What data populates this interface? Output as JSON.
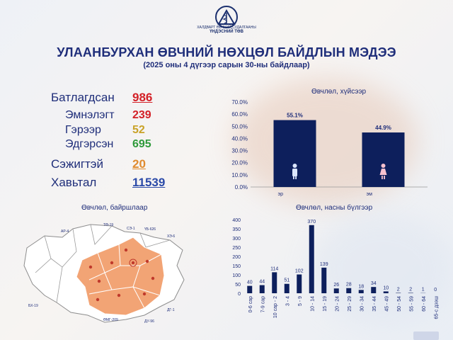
{
  "header": {
    "logo_lines": [
      "ХАЛДВАРТ ӨВЧНИЙ СУДАЛГААНЫ",
      "ҮНДЭСНИЙ ТӨВ"
    ],
    "title": "УЛААНБУРХАН ӨВЧНИЙ НӨХЦӨЛ БАЙДЛЫН МЭДЭЭ",
    "subtitle": "(2025 оны 4 дүгээр сарын 30-ны байдлаар)"
  },
  "stats": {
    "confirmed": {
      "label": "Батлагдсан",
      "value": "986",
      "color": "#d32027"
    },
    "hospital": {
      "label": "Эмнэлэгт",
      "value": "239",
      "color": "#d32027"
    },
    "home": {
      "label": "Гэрээр",
      "value": "52",
      "color": "#c9a227"
    },
    "recovered": {
      "label": "Эдгэрсэн",
      "value": "695",
      "color": "#2e9a3a"
    },
    "suspected": {
      "label": "Сэжигтэй",
      "value": "20",
      "color": "#e08b2e"
    },
    "contacts": {
      "label": "Хавьтал",
      "value": "11539",
      "color": "#2b4aa8"
    }
  },
  "map": {
    "title": "Өвчлөл, байршлаар",
    "highlight_color": "#f2a475",
    "labels": [
      "АР-4",
      "ТӨ-19",
      "СЭ-1",
      "ҮБ-626",
      "ХЭ-6",
      "БХ-19",
      "ӨМГ-209",
      "ДГ-1",
      "ДУ-96"
    ]
  },
  "chart_data": [
    {
      "type": "bar",
      "title": "Өвчлөл, хүйсээр",
      "categories": [
        "эр",
        "эм"
      ],
      "values": [
        55.1,
        44.9
      ],
      "data_labels": [
        "55.1%",
        "44.9%"
      ],
      "ylim": [
        0,
        70
      ],
      "yticks": [
        "0.0%",
        "10.0%",
        "20.0%",
        "30.0%",
        "40.0%",
        "50.0%",
        "60.0%",
        "70.0%"
      ],
      "icons": [
        "male-icon",
        "female-icon"
      ],
      "bar_color": "#0d1f5c",
      "grid": false
    },
    {
      "type": "bar",
      "title": "Өвчлөл, насны бүлгээр",
      "categories": [
        "0-6 сар",
        "7-9 сар",
        "10 сар - 2",
        "3 - 4",
        "5 - 9",
        "10 - 14",
        "15 - 19",
        "20 - 24",
        "25 - 29",
        "30 - 34",
        "35 - 44",
        "45 - 49",
        "50 - 54",
        "55 - 59",
        "60 - 64",
        "65-с дээш"
      ],
      "values": [
        40,
        44,
        114,
        51,
        102,
        370,
        139,
        26,
        28,
        18,
        34,
        10,
        2,
        2,
        1,
        0
      ],
      "ylim": [
        0,
        400
      ],
      "yticks": [
        "0",
        "50",
        "100",
        "150",
        "200",
        "250",
        "300",
        "350",
        "400"
      ],
      "bar_color": "#0d1f5c",
      "grid": false
    }
  ]
}
